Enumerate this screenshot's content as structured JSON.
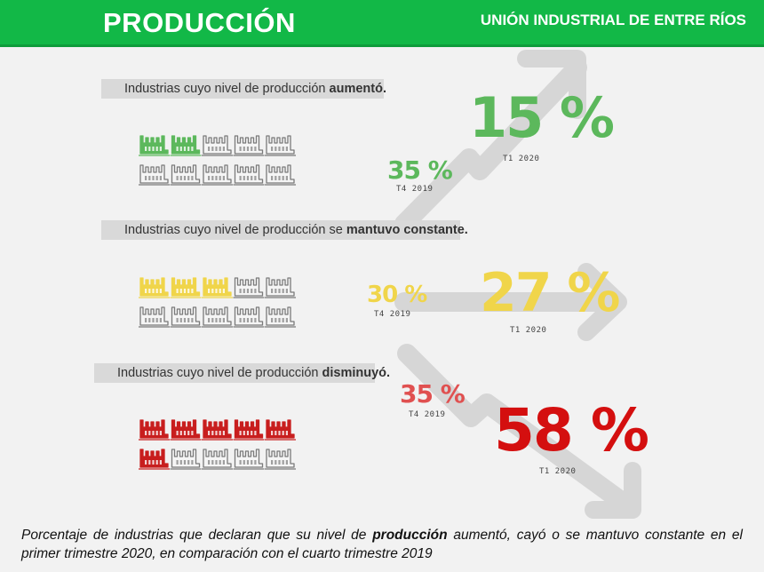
{
  "header": {
    "title": "PRODUCCIÓN",
    "organization": "UNIÓN INDUSTRIAL DE ENTRE RÍOS"
  },
  "chart_data": {
    "type": "infographic",
    "series": [
      {
        "label_prefix": "Industrias cuyo nivel de producción",
        "label_strong": "aumentó.",
        "previous": {
          "value": 35,
          "text": "35 %",
          "period": "T4 2019"
        },
        "current": {
          "value": 15,
          "text": "15 %",
          "period": "T1 2020"
        },
        "filled_icons": 2,
        "total_icons": 10,
        "color": "#5cb85c",
        "arrow": "up"
      },
      {
        "label_prefix": "Industrias cuyo nivel de producción se",
        "label_strong": "mantuvo constante.",
        "previous": {
          "value": 30,
          "text": "30 %",
          "period": "T4 2019"
        },
        "current": {
          "value": 27,
          "text": "27 %",
          "period": "T1 2020"
        },
        "filled_icons": 3,
        "total_icons": 10,
        "color": "#f0d54a",
        "arrow": "right"
      },
      {
        "label_prefix": "Industrias cuyo nivel de producción",
        "label_strong": "disminuyó.",
        "previous": {
          "value": 35,
          "text": "35 %",
          "period": "T4 2019"
        },
        "current": {
          "value": 58,
          "text": "58 %",
          "period": "T1 2020"
        },
        "filled_icons": 6,
        "total_icons": 10,
        "color": "#c81e1e",
        "current_color": "#d40f0f",
        "previous_color": "#e05050",
        "arrow": "down"
      }
    ]
  },
  "caption": {
    "before": "Porcentaje de industrias que declaran que su nivel de",
    "strong": "producción",
    "after": "aumentó, cayó o se mantuvo constante en el primer trimestre 2020, en comparación con el cuarto trimestre 2019"
  },
  "colors": {
    "header": "#12b847",
    "arrow": "#d6d6d6",
    "label_bar": "#d9d9d9",
    "outline_icon": "#7a7a7a"
  },
  "icons": {
    "factory": "factory-icon"
  }
}
